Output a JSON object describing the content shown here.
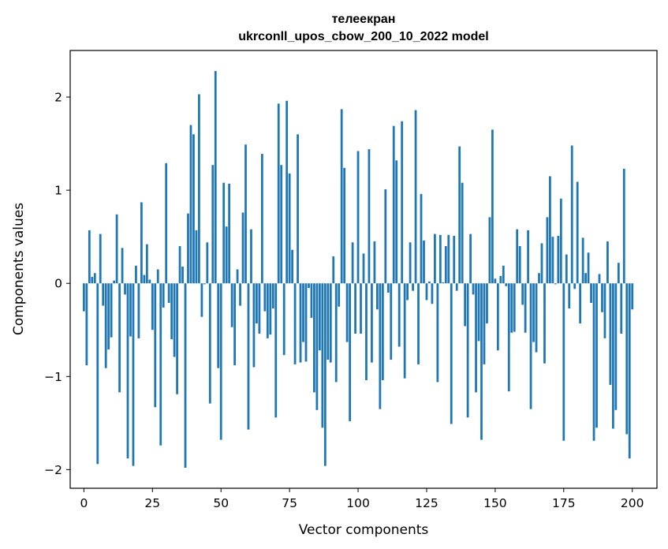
{
  "chart_data": {
    "type": "bar",
    "title_line1": "телеекран",
    "title_line2": "ukrconll_upos_cbow_200_10_2022 model",
    "xlabel": "Vector components",
    "ylabel": "Components values",
    "xlim": [
      -5,
      209
    ],
    "ylim": [
      -2.2,
      2.5
    ],
    "x_ticks": [
      0,
      25,
      50,
      75,
      100,
      125,
      150,
      175,
      200
    ],
    "x_tick_labels": [
      "0",
      "25",
      "50",
      "75",
      "100",
      "125",
      "150",
      "175",
      "200"
    ],
    "y_ticks": [
      -2,
      -1,
      0,
      1,
      2
    ],
    "y_tick_labels": [
      "−2",
      "−1",
      "0",
      "1",
      "2"
    ],
    "bar_color": "#1f77b4",
    "values": [
      -0.3,
      -0.88,
      0.57,
      0.07,
      0.11,
      -1.94,
      0.53,
      -0.24,
      -0.91,
      -0.71,
      -0.58,
      0.03,
      0.74,
      -1.17,
      0.38,
      -0.12,
      -1.88,
      -0.57,
      -1.96,
      0.19,
      -0.59,
      0.87,
      0.09,
      0.42,
      0.04,
      -0.5,
      -1.33,
      0.15,
      -1.74,
      -0.26,
      1.29,
      -0.21,
      -0.6,
      -0.79,
      -1.19,
      0.4,
      0.18,
      -1.98,
      0.75,
      1.7,
      1.6,
      0.57,
      2.03,
      -0.36,
      -0.01,
      0.44,
      -1.29,
      1.27,
      2.28,
      -0.91,
      -1.68,
      1.08,
      0.61,
      1.07,
      -0.47,
      -0.88,
      0.15,
      -0.24,
      0.76,
      1.49,
      -1.57,
      0.58,
      -0.9,
      -0.43,
      -0.54,
      1.39,
      -0.3,
      -0.59,
      -0.55,
      -0.27,
      -1.44,
      1.93,
      1.27,
      -0.77,
      1.96,
      1.18,
      0.36,
      -0.87,
      1.6,
      -0.85,
      -0.63,
      -0.84,
      -0.05,
      -0.37,
      -1.17,
      -1.36,
      -0.72,
      -1.55,
      -1.96,
      -0.82,
      -0.85,
      0.29,
      -1.06,
      -0.25,
      1.87,
      1.24,
      -0.63,
      -1.48,
      0.44,
      -0.54,
      1.42,
      -0.54,
      0.32,
      -1.04,
      1.44,
      -0.85,
      0.45,
      -0.28,
      -1.35,
      -1.04,
      1.01,
      -0.1,
      -0.82,
      1.69,
      1.32,
      -0.68,
      1.74,
      -1.02,
      -0.18,
      0.44,
      -0.08,
      1.86,
      -0.87,
      0.96,
      0.46,
      -0.18,
      0.02,
      -0.22,
      0.53,
      -1.06,
      0.52,
      0.01,
      0.4,
      0.52,
      -1.51,
      0.51,
      -0.08,
      1.47,
      1.08,
      -0.46,
      -1.44,
      0.53,
      -0.12,
      -1.17,
      -0.62,
      -1.68,
      -0.87,
      -0.43,
      0.71,
      1.65,
      0.05,
      -0.72,
      0.08,
      0.19,
      -0.03,
      -1.16,
      -0.53,
      -0.52,
      0.58,
      0.4,
      -0.23,
      -0.53,
      0.57,
      -1.35,
      -0.63,
      -0.74,
      0.11,
      0.43,
      -0.86,
      0.71,
      1.15,
      0.5,
      -0.01,
      0.51,
      0.91,
      -1.69,
      0.31,
      -0.27,
      1.48,
      -0.06,
      1.09,
      -0.43,
      0.49,
      0.11,
      0.33,
      -0.21,
      -1.69,
      -1.55,
      0.1,
      -0.31,
      -0.59,
      0.45,
      -1.09,
      -1.56,
      -1.36,
      0.22,
      -0.54,
      1.23,
      -1.62,
      -1.88,
      -0.28
    ]
  }
}
